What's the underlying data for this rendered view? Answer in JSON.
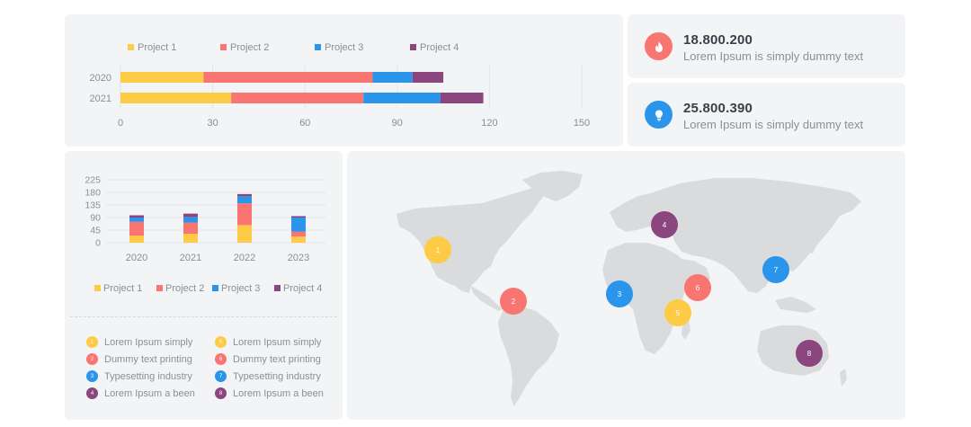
{
  "colors": {
    "project_1": "#fdcb46",
    "project_2": "#f87571",
    "project_3": "#2b95ec",
    "project_4": "#8b457f",
    "panel_bg": "#f3f4f6",
    "land": "#d9dbdc"
  },
  "chart_data": [
    {
      "type": "bar",
      "orientation": "horizontal",
      "stacked": true,
      "categories": [
        "2020",
        "2021"
      ],
      "series": [
        {
          "name": "Project 1",
          "values": [
            27,
            36
          ]
        },
        {
          "name": "Project 2",
          "values": [
            55,
            43
          ]
        },
        {
          "name": "Project 3",
          "values": [
            13,
            25
          ]
        },
        {
          "name": "Project 4",
          "values": [
            10,
            14
          ]
        }
      ],
      "xlim": [
        0,
        150
      ],
      "xticks": [
        "0",
        "30",
        "60",
        "90",
        "120",
        "150"
      ],
      "legend_position": "top",
      "grid": true
    },
    {
      "type": "bar",
      "orientation": "vertical",
      "stacked": true,
      "categories": [
        "2020",
        "2021",
        "2022",
        "2023"
      ],
      "series": [
        {
          "name": "Project 1",
          "values": [
            25,
            32,
            63,
            22
          ]
        },
        {
          "name": "Project 2",
          "values": [
            50,
            40,
            78,
            18
          ]
        },
        {
          "name": "Project 3",
          "values": [
            15,
            20,
            25,
            50
          ]
        },
        {
          "name": "Project 4",
          "values": [
            8,
            12,
            8,
            5
          ]
        }
      ],
      "ylim": [
        0,
        225
      ],
      "yticks": [
        "0",
        "45",
        "90",
        "135",
        "180",
        "225"
      ],
      "legend_position": "bottom",
      "grid": true
    }
  ],
  "stats": [
    {
      "value": "18.800.200",
      "description": "Lorem Ipsum is simply dummy text",
      "icon": "fire-icon"
    },
    {
      "value": "25.800.390",
      "description": "Lorem Ipsum is simply dummy text",
      "icon": "lightbulb-icon"
    }
  ],
  "map_legend": [
    {
      "number": "1",
      "label": "Lorem Ipsum simply"
    },
    {
      "number": "2",
      "label": "Dummy text printing"
    },
    {
      "number": "3",
      "label": "Typesetting industry"
    },
    {
      "number": "4",
      "label": "Lorem Ipsum a been"
    },
    {
      "number": "5",
      "label": "Lorem Ipsum simply"
    },
    {
      "number": "6",
      "label": "Dummy text printing"
    },
    {
      "number": "7",
      "label": "Typesetting industry"
    },
    {
      "number": "8",
      "label": "Lorem Ipsum a been"
    }
  ],
  "map_markers": [
    {
      "number": "1",
      "location": "North America (west coast)"
    },
    {
      "number": "2",
      "location": "Central America"
    },
    {
      "number": "3",
      "location": "West Africa"
    },
    {
      "number": "4",
      "location": "Russia"
    },
    {
      "number": "5",
      "location": "East Africa"
    },
    {
      "number": "6",
      "location": "Middle East"
    },
    {
      "number": "7",
      "location": "East Asia"
    },
    {
      "number": "8",
      "location": "Australia"
    }
  ]
}
